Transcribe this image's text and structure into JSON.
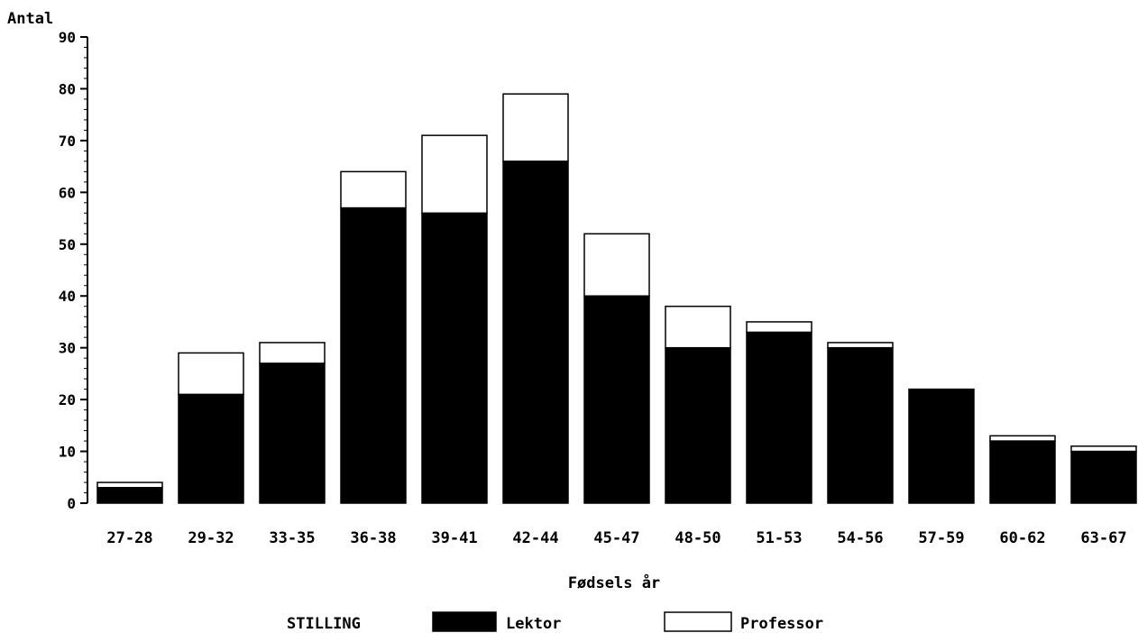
{
  "chart_data": {
    "type": "bar",
    "stacked": true,
    "ylabel": "Antal",
    "xlabel": "Fødsels år",
    "ylim": [
      0,
      90
    ],
    "yticks": [
      0,
      10,
      20,
      30,
      40,
      50,
      60,
      70,
      80,
      90
    ],
    "categories": [
      "27-28",
      "29-32",
      "33-35",
      "36-38",
      "39-41",
      "42-44",
      "45-47",
      "48-50",
      "51-53",
      "54-56",
      "57-59",
      "60-62",
      "63-67"
    ],
    "series": [
      {
        "name": "Lektor",
        "color": "#000000",
        "values": [
          3,
          21,
          27,
          57,
          56,
          66,
          40,
          30,
          33,
          30,
          22,
          12,
          10
        ]
      },
      {
        "name": "Professor",
        "color": "#ffffff",
        "values": [
          1,
          8,
          4,
          7,
          15,
          13,
          12,
          8,
          2,
          1,
          0,
          1,
          1
        ]
      }
    ],
    "legend": {
      "title": "STILLING",
      "position": "bottom"
    },
    "grid": false
  }
}
